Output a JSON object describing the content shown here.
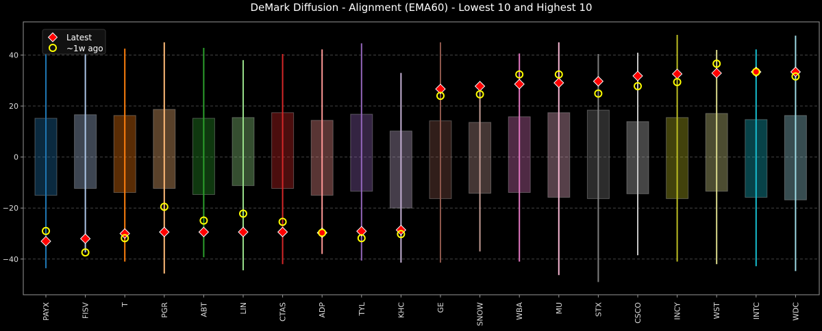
{
  "chart_data": {
    "type": "box-range",
    "title": "DeMark Diffusion - Alignment (EMA60) - Lowest 10 and Highest 10",
    "xlabel": "",
    "ylabel": "",
    "ylim": [
      -54,
      53
    ],
    "yticks": [
      -40,
      -20,
      0,
      20,
      40
    ],
    "grid": "horizontal dashed",
    "legend_position": "top-left",
    "legend": [
      {
        "key": "latest",
        "label": "Latest",
        "marker": "diamond",
        "color": "#ff0000"
      },
      {
        "key": "week_ago",
        "label": "~1w ago",
        "marker": "circle-open",
        "color": "#ffff00"
      }
    ],
    "categories": [
      "PAYX",
      "FISV",
      "T",
      "PGR",
      "ABT",
      "LIN",
      "CTAS",
      "ADP",
      "TYL",
      "KHC",
      "GE",
      "SNOW",
      "WBA",
      "MU",
      "STX",
      "CSCO",
      "INCY",
      "WST",
      "INTC",
      "WDC"
    ],
    "colors": [
      "#1f77b4",
      "#aec7e8",
      "#ff7f0e",
      "#ffbb78",
      "#2ca02c",
      "#98df8a",
      "#d62728",
      "#ff9896",
      "#9467bd",
      "#c5b0d5",
      "#8c564b",
      "#c49c94",
      "#e377c2",
      "#f7b6d2",
      "#7f7f7f",
      "#c7c7c7",
      "#bcbd22",
      "#dbdb8d",
      "#17becf",
      "#9edae5"
    ],
    "min": [
      -43.6,
      -37.4,
      -41,
      -45.7,
      -39.3,
      -44.4,
      -42,
      -38,
      -40.6,
      -41.4,
      -41.4,
      -37,
      -41,
      -46.3,
      -49,
      -38.5,
      -41,
      -42,
      -42.8,
      -44.7
    ],
    "max": [
      44.6,
      41,
      42.5,
      45,
      42.8,
      38,
      40.4,
      42.2,
      44.6,
      33,
      45,
      27.8,
      40.6,
      45,
      40.4,
      40.9,
      47.9,
      42,
      42.2,
      47.6
    ],
    "q_low": [
      -15,
      -12.3,
      -13.9,
      -12.3,
      -14.7,
      -11.2,
      -12.3,
      -15,
      -13.4,
      -20,
      -16.3,
      -14.2,
      -13.9,
      -15.8,
      -16.3,
      -14.4,
      -16.3,
      -13.4,
      -15.8,
      -16.8
    ],
    "q_high": [
      15.2,
      16.6,
      16.3,
      18.7,
      15.2,
      15.5,
      17.4,
      14.4,
      16.8,
      10.2,
      14.2,
      13.6,
      15.8,
      17.4,
      18.4,
      13.9,
      15.5,
      17.1,
      14.7,
      16.3
    ],
    "latest": [
      -33,
      -32,
      -30,
      -29.4,
      -29.4,
      -29.4,
      -29.4,
      -29.7,
      -29.1,
      -28.6,
      26.7,
      27.8,
      28.6,
      29.1,
      29.7,
      31.8,
      32.6,
      32.9,
      33.4,
      33.4
    ],
    "week_ago": [
      -29,
      -37.4,
      -31.8,
      -19.5,
      -24.9,
      -22.2,
      -25.4,
      -29.7,
      -31.8,
      -30.2,
      24,
      24.6,
      32.4,
      32.4,
      24.9,
      27.8,
      29.4,
      36.6,
      33.4,
      31.6
    ]
  }
}
